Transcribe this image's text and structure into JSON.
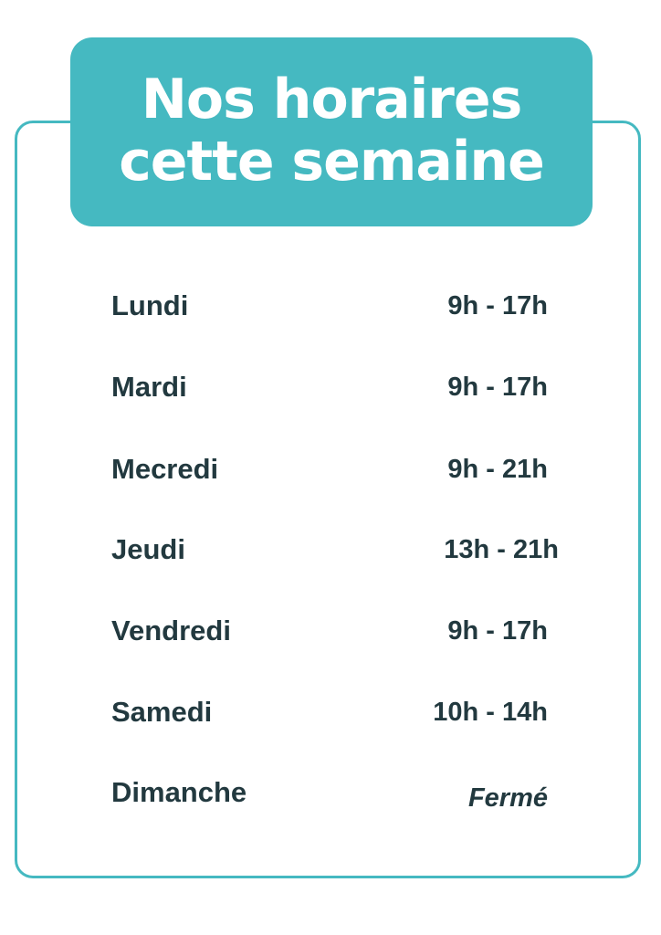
{
  "title": {
    "line1": "Nos horaires",
    "line2": "cette semaine"
  },
  "schedule": [
    {
      "day": "Lundi",
      "hours": "9h - 17h"
    },
    {
      "day": "Mardi",
      "hours": "9h - 17h"
    },
    {
      "day": "Mecredi",
      "hours": "9h - 21h"
    },
    {
      "day": "Jeudi",
      "hours": "13h - 21h"
    },
    {
      "day": "Vendredi",
      "hours": "9h - 17h"
    },
    {
      "day": "Samedi",
      "hours": "10h - 14h"
    },
    {
      "day": "Dimanche",
      "hours": "Fermé"
    }
  ],
  "colors": {
    "accent": "#45b9c1",
    "text": "#22393f"
  }
}
